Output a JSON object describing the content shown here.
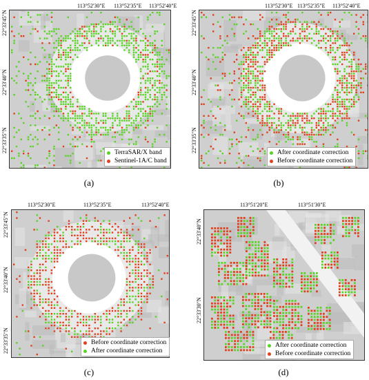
{
  "colors": {
    "green": "#5ad326",
    "red": "#e0401c",
    "background": "#d6d6d6"
  },
  "panels": [
    {
      "id": "a",
      "caption": "(a)",
      "top_labels": [
        "113°52'30\"E",
        "113°52'35\"E",
        "113°52'40\"E"
      ],
      "left_labels": [
        "22°33'45\"N",
        "22°33'40\"N",
        "22°33'35\"N"
      ],
      "legend": [
        {
          "label": "TerraSAR/X band",
          "color": "green"
        },
        {
          "label": "Sentinel-1A/C band",
          "color": "red"
        }
      ]
    },
    {
      "id": "b",
      "caption": "(b)",
      "top_labels": [
        "113°52'30\"E",
        "113°52'35\"E",
        "113°52'40\"E"
      ],
      "left_labels": [
        "22°33'45\"N",
        "22°33'40\"N",
        "22°33'35\"N"
      ],
      "legend": [
        {
          "label": "After coordinate correction",
          "color": "green"
        },
        {
          "label": "Before coordinate correction",
          "color": "red"
        }
      ]
    },
    {
      "id": "c",
      "caption": "(c)",
      "top_labels": [
        "113°52'30\"E",
        "113°52'35\"E",
        "113°52'40\"E"
      ],
      "left_labels": [
        "22°33'45\"N",
        "22°33'40\"N",
        "22°33'35\"N"
      ],
      "legend": [
        {
          "label": "Before coordinate correction",
          "color": "red"
        },
        {
          "label": "After coordinate correction",
          "color": "green"
        }
      ]
    },
    {
      "id": "d",
      "caption": "(d)",
      "top_labels": [
        "113°51'20\"E",
        "113°51'30\"E"
      ],
      "left_labels": [
        "22°33'40\"N",
        "22°33'30\"N"
      ],
      "legend": [
        {
          "label": "After coordinate correction",
          "color": "green"
        },
        {
          "label": "Before coordinate correction",
          "color": "red"
        }
      ]
    }
  ]
}
